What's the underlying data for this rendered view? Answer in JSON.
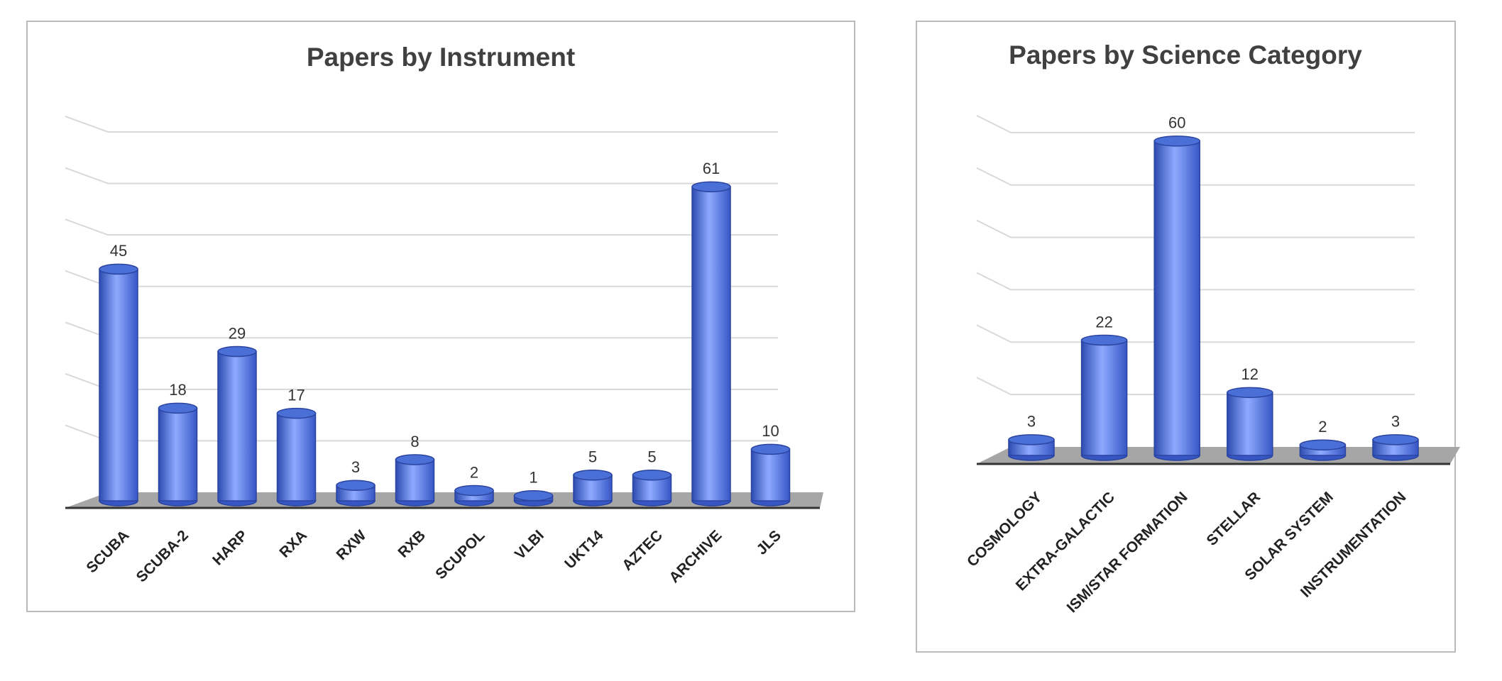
{
  "chart_data": [
    {
      "type": "bar",
      "title": "Papers by Instrument",
      "categories": [
        "SCUBA",
        "SCUBA-2",
        "HARP",
        "RXA",
        "RXW",
        "RXB",
        "SCUPOL",
        "VLBI",
        "UKT14",
        "AZTEC",
        "ARCHIVE",
        "JLS"
      ],
      "values": [
        45,
        18,
        29,
        17,
        3,
        8,
        2,
        1,
        5,
        5,
        61,
        10
      ],
      "color": "#4a6fd6",
      "ylim": [
        0,
        70
      ],
      "yticks": [
        0,
        10,
        20,
        30,
        40,
        50,
        60,
        70
      ],
      "grid": true
    },
    {
      "type": "bar",
      "title": "Papers by Science Category",
      "categories": [
        "COSMOLOGY",
        "EXTRA-GALACTIC",
        "ISM/STAR FORMATION",
        "STELLAR",
        "SOLAR SYSTEM",
        "INSTRUMENTATION"
      ],
      "values": [
        3,
        22,
        60,
        12,
        2,
        3
      ],
      "color": "#4a6fd6",
      "ylim": [
        0,
        70
      ],
      "yticks": [
        0,
        10,
        20,
        30,
        40,
        50,
        60
      ],
      "grid": true
    }
  ]
}
